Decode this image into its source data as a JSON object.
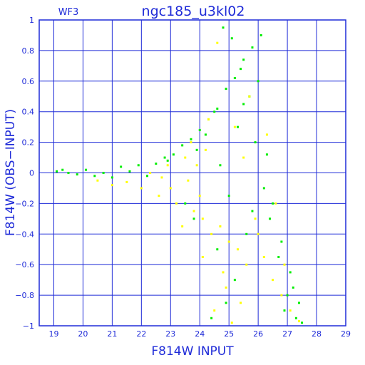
{
  "chart_data": {
    "type": "scatter",
    "title": "ngc185_u3kl02",
    "chip_label": "WF3",
    "xlabel": "F814W  INPUT",
    "ylabel": "F814W (OBS−INPUT)",
    "xlim": [
      18.5,
      29
    ],
    "ylim": [
      -1,
      1
    ],
    "x_ticks": [
      19,
      20,
      21,
      22,
      23,
      24,
      25,
      26,
      27,
      28,
      29
    ],
    "x_tick_labels": [
      "19",
      "20",
      "21",
      "22",
      "23",
      "24",
      "25",
      "26",
      "27",
      "28",
      "29"
    ],
    "y_ticks": [
      -1,
      -0.8,
      -0.6,
      -0.4,
      -0.2,
      0,
      0.2,
      0.4,
      0.6,
      0.8,
      1
    ],
    "y_tick_labels": [
      "−1",
      "−0.8",
      "−0.6",
      "−0.4",
      "−0.2",
      "0",
      "0.2",
      "0.4",
      "0.6",
      "0.8",
      "1"
    ],
    "grid": true,
    "colors": {
      "axes": "#1f2bd8",
      "series_a": "#00ee00",
      "series_b": "#ffff00"
    },
    "series": [
      {
        "color": "#00ee00",
        "x": [
          19.1,
          19.3,
          19.5,
          19.8,
          20.1,
          20.4,
          20.7,
          21.0,
          21.3,
          21.6,
          21.9,
          22.2,
          22.5,
          22.8,
          23.1,
          23.4,
          23.7,
          24.0,
          24.3,
          24.6,
          24.9,
          25.2,
          25.5,
          25.8,
          26.1,
          26.4,
          26.7,
          27.0,
          27.3,
          27.5,
          24.8,
          25.1,
          25.4,
          25.7,
          24.5,
          23.9,
          24.2,
          24.7,
          25.0,
          25.3,
          25.6,
          25.9,
          26.2,
          26.5,
          26.8,
          27.1,
          27.4,
          24.6,
          23.5,
          22.9,
          25.2,
          25.8,
          26.3,
          26.9,
          27.2,
          25.5,
          24.9,
          24.4,
          23.8,
          26.0
        ],
        "y": [
          0.01,
          0.02,
          0.0,
          -0.01,
          0.02,
          -0.02,
          0.0,
          -0.03,
          0.04,
          0.01,
          0.05,
          -0.02,
          0.06,
          0.1,
          0.12,
          0.18,
          0.22,
          0.28,
          0.35,
          0.42,
          0.55,
          0.62,
          0.74,
          0.82,
          0.9,
          -0.3,
          -0.55,
          -0.8,
          -0.95,
          -0.98,
          0.95,
          0.88,
          0.68,
          0.5,
          0.4,
          0.15,
          0.25,
          0.05,
          -0.15,
          0.3,
          -0.4,
          0.2,
          -0.1,
          -0.2,
          -0.45,
          -0.65,
          -0.85,
          -0.5,
          -0.2,
          0.08,
          -0.7,
          -0.25,
          0.12,
          -0.9,
          -0.75,
          0.45,
          -0.85,
          -0.95,
          -0.3,
          0.6
        ]
      },
      {
        "color": "#ffff00",
        "x": [
          20.5,
          21.0,
          21.5,
          22.0,
          22.3,
          22.6,
          22.9,
          23.2,
          23.5,
          23.8,
          24.1,
          24.4,
          24.7,
          25.0,
          25.3,
          25.6,
          25.9,
          26.2,
          26.5,
          26.8,
          27.1,
          27.4,
          23.0,
          23.6,
          24.2,
          24.8,
          25.4,
          26.0,
          26.6,
          24.0,
          24.5,
          25.1,
          24.3,
          23.7,
          22.7,
          25.7,
          26.3,
          26.9,
          24.6,
          23.9,
          25.2,
          24.9,
          25.5,
          24.1,
          23.4
        ],
        "y": [
          -0.05,
          -0.08,
          -0.06,
          -0.1,
          0.0,
          -0.15,
          0.05,
          -0.2,
          0.1,
          -0.25,
          -0.3,
          -0.4,
          -0.35,
          -0.45,
          -0.5,
          -0.6,
          -0.3,
          -0.55,
          -0.7,
          -0.8,
          -0.9,
          -0.97,
          -0.1,
          -0.05,
          0.15,
          -0.65,
          -0.85,
          -0.4,
          -0.2,
          -0.15,
          -0.9,
          -0.98,
          0.35,
          0.2,
          -0.03,
          0.5,
          0.25,
          -0.6,
          0.85,
          0.05,
          0.3,
          -0.75,
          0.1,
          -0.55,
          -0.35
        ]
      }
    ]
  }
}
